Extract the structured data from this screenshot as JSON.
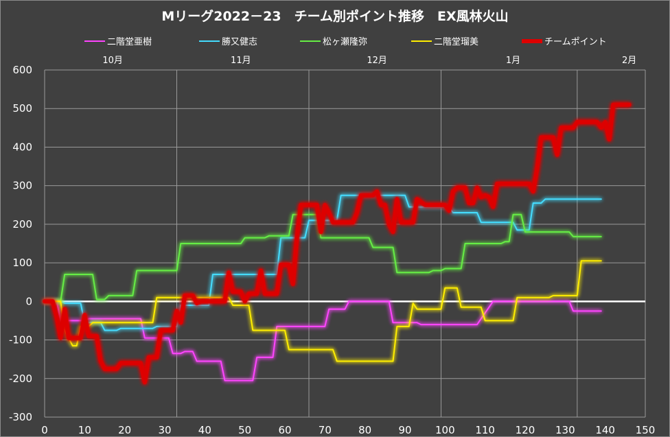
{
  "chart_data": {
    "type": "line",
    "title": "Mリーグ2022－23　チーム別ポイント推移　EX風林火山",
    "xlabel": "",
    "ylabel": "",
    "xlim": [
      0,
      150
    ],
    "ylim": [
      -300,
      600
    ],
    "x_ticks": [
      0,
      10,
      20,
      30,
      40,
      50,
      60,
      70,
      80,
      90,
      100,
      110,
      120,
      130,
      140,
      150
    ],
    "y_ticks": [
      -300,
      -200,
      -100,
      0,
      100,
      200,
      300,
      400,
      500,
      600
    ],
    "x_grid_lines": [
      0,
      33,
      66,
      99,
      133,
      150
    ],
    "month_labels": [
      {
        "label": "10月",
        "x": 17
      },
      {
        "label": "11月",
        "x": 49
      },
      {
        "label": "12月",
        "x": 83
      },
      {
        "label": "1月",
        "x": 117
      },
      {
        "label": "2月",
        "x": 146
      }
    ],
    "grid": true,
    "legend_position": "top",
    "series": [
      {
        "name": "二階堂亜樹",
        "color": "#ff44ff",
        "width": 2,
        "points": [
          [
            0,
            0
          ],
          [
            3,
            0
          ],
          [
            4,
            -50
          ],
          [
            10,
            -50
          ],
          [
            11,
            -45
          ],
          [
            24,
            -45
          ],
          [
            25,
            -95
          ],
          [
            31,
            -95
          ],
          [
            32,
            -135
          ],
          [
            34,
            -135
          ],
          [
            35,
            -130
          ],
          [
            37,
            -130
          ],
          [
            38,
            -155
          ],
          [
            44,
            -155
          ],
          [
            45,
            -205
          ],
          [
            52,
            -205
          ],
          [
            53,
            -145
          ],
          [
            57,
            -145
          ],
          [
            58,
            -65
          ],
          [
            70,
            -65
          ],
          [
            71,
            -20
          ],
          [
            75,
            -20
          ],
          [
            76,
            0
          ],
          [
            86,
            0
          ],
          [
            87,
            -55
          ],
          [
            93,
            -55
          ],
          [
            94,
            -60
          ],
          [
            108,
            -60
          ],
          [
            109,
            -45
          ],
          [
            112,
            0
          ],
          [
            131,
            0
          ],
          [
            132,
            -25
          ],
          [
            139,
            -25
          ]
        ]
      },
      {
        "name": "勝又健志",
        "color": "#44ddff",
        "width": 2,
        "points": [
          [
            0,
            0
          ],
          [
            4,
            0
          ],
          [
            5,
            -5
          ],
          [
            9,
            -5
          ],
          [
            10,
            -55
          ],
          [
            14,
            -55
          ],
          [
            15,
            -75
          ],
          [
            18,
            -75
          ],
          [
            19,
            -70
          ],
          [
            27,
            -70
          ],
          [
            28,
            -65
          ],
          [
            33,
            -65
          ],
          [
            34,
            -10
          ],
          [
            41,
            -10
          ],
          [
            42,
            70
          ],
          [
            58,
            70
          ],
          [
            59,
            165
          ],
          [
            65,
            165
          ],
          [
            66,
            210
          ],
          [
            73,
            210
          ],
          [
            74,
            275
          ],
          [
            90,
            275
          ],
          [
            91,
            245
          ],
          [
            101,
            245
          ],
          [
            102,
            230
          ],
          [
            108,
            230
          ],
          [
            109,
            205
          ],
          [
            117,
            205
          ],
          [
            118,
            185
          ],
          [
            121,
            185
          ],
          [
            122,
            255
          ],
          [
            124,
            255
          ],
          [
            125,
            265
          ],
          [
            139,
            265
          ]
        ]
      },
      {
        "name": "松ヶ瀬隆弥",
        "color": "#66ee44",
        "width": 2,
        "points": [
          [
            0,
            0
          ],
          [
            4,
            0
          ],
          [
            5,
            70
          ],
          [
            12,
            70
          ],
          [
            13,
            5
          ],
          [
            15,
            5
          ],
          [
            16,
            15
          ],
          [
            22,
            15
          ],
          [
            23,
            80
          ],
          [
            33,
            80
          ],
          [
            34,
            150
          ],
          [
            49,
            150
          ],
          [
            50,
            165
          ],
          [
            55,
            165
          ],
          [
            56,
            170
          ],
          [
            61,
            170
          ],
          [
            62,
            225
          ],
          [
            68,
            225
          ],
          [
            69,
            165
          ],
          [
            81,
            165
          ],
          [
            82,
            140
          ],
          [
            87,
            140
          ],
          [
            88,
            75
          ],
          [
            96,
            75
          ],
          [
            97,
            80
          ],
          [
            99,
            80
          ],
          [
            100,
            85
          ],
          [
            104,
            85
          ],
          [
            105,
            150
          ],
          [
            114,
            150
          ],
          [
            115,
            155
          ],
          [
            116,
            155
          ],
          [
            117,
            225
          ],
          [
            119,
            225
          ],
          [
            120,
            180
          ],
          [
            131,
            180
          ],
          [
            132,
            168
          ],
          [
            139,
            168
          ]
        ]
      },
      {
        "name": "二階堂瑠美",
        "color": "#ffee00",
        "width": 2,
        "points": [
          [
            0,
            0
          ],
          [
            4,
            0
          ],
          [
            5,
            -75
          ],
          [
            7,
            -115
          ],
          [
            8,
            -115
          ],
          [
            9,
            -65
          ],
          [
            11,
            -65
          ],
          [
            12,
            -55
          ],
          [
            27,
            -55
          ],
          [
            28,
            10
          ],
          [
            46,
            10
          ],
          [
            47,
            -10
          ],
          [
            51,
            -10
          ],
          [
            52,
            -75
          ],
          [
            60,
            -75
          ],
          [
            61,
            -125
          ],
          [
            72,
            -125
          ],
          [
            73,
            -155
          ],
          [
            87,
            -155
          ],
          [
            88,
            -65
          ],
          [
            91,
            -65
          ],
          [
            92,
            -5
          ],
          [
            93,
            -20
          ],
          [
            99,
            -20
          ],
          [
            100,
            35
          ],
          [
            103,
            35
          ],
          [
            104,
            -15
          ],
          [
            109,
            -15
          ],
          [
            110,
            -50
          ],
          [
            117,
            -50
          ],
          [
            118,
            10
          ],
          [
            126,
            10
          ],
          [
            127,
            15
          ],
          [
            133,
            15
          ],
          [
            134,
            105
          ],
          [
            139,
            105
          ]
        ]
      },
      {
        "name": "チームポイント",
        "color": "#dd0000",
        "width": 6,
        "points": [
          [
            0,
            0
          ],
          [
            2,
            0
          ],
          [
            3,
            -40
          ],
          [
            4,
            -95
          ],
          [
            5,
            -20
          ],
          [
            6,
            -95
          ],
          [
            9,
            -95
          ],
          [
            10,
            -35
          ],
          [
            11,
            -90
          ],
          [
            13,
            -90
          ],
          [
            14,
            -155
          ],
          [
            15,
            -175
          ],
          [
            18,
            -175
          ],
          [
            19,
            -160
          ],
          [
            24,
            -160
          ],
          [
            25,
            -210
          ],
          [
            26,
            -145
          ],
          [
            28,
            -145
          ],
          [
            29,
            -75
          ],
          [
            32,
            -75
          ],
          [
            33,
            -25
          ],
          [
            34,
            -55
          ],
          [
            35,
            15
          ],
          [
            37,
            15
          ],
          [
            38,
            -5
          ],
          [
            39,
            0
          ],
          [
            45,
            0
          ],
          [
            46,
            75
          ],
          [
            47,
            25
          ],
          [
            49,
            25
          ],
          [
            50,
            0
          ],
          [
            51,
            20
          ],
          [
            53,
            20
          ],
          [
            54,
            80
          ],
          [
            55,
            20
          ],
          [
            58,
            20
          ],
          [
            59,
            95
          ],
          [
            61,
            95
          ],
          [
            62,
            45
          ],
          [
            63,
            165
          ],
          [
            64,
            250
          ],
          [
            68,
            250
          ],
          [
            69,
            180
          ],
          [
            70,
            250
          ],
          [
            71,
            230
          ],
          [
            72,
            205
          ],
          [
            77,
            205
          ],
          [
            78,
            230
          ],
          [
            79,
            275
          ],
          [
            82,
            275
          ],
          [
            83,
            285
          ],
          [
            84,
            250
          ],
          [
            85,
            250
          ],
          [
            86,
            200
          ],
          [
            87,
            180
          ],
          [
            88,
            265
          ],
          [
            89,
            205
          ],
          [
            92,
            205
          ],
          [
            93,
            265
          ],
          [
            95,
            250
          ],
          [
            100,
            250
          ],
          [
            101,
            235
          ],
          [
            102,
            285
          ],
          [
            103,
            295
          ],
          [
            105,
            295
          ],
          [
            106,
            255
          ],
          [
            107,
            255
          ],
          [
            108,
            295
          ],
          [
            109,
            270
          ],
          [
            110,
            275
          ],
          [
            111,
            270
          ],
          [
            112,
            245
          ],
          [
            113,
            305
          ],
          [
            121,
            305
          ],
          [
            122,
            285
          ],
          [
            123,
            345
          ],
          [
            124,
            425
          ],
          [
            127,
            425
          ],
          [
            128,
            380
          ],
          [
            129,
            450
          ],
          [
            132,
            450
          ],
          [
            133,
            465
          ],
          [
            138,
            465
          ],
          [
            139,
            450
          ],
          [
            140,
            465
          ],
          [
            141,
            420
          ],
          [
            142,
            510
          ],
          [
            146,
            510
          ]
        ]
      }
    ]
  }
}
